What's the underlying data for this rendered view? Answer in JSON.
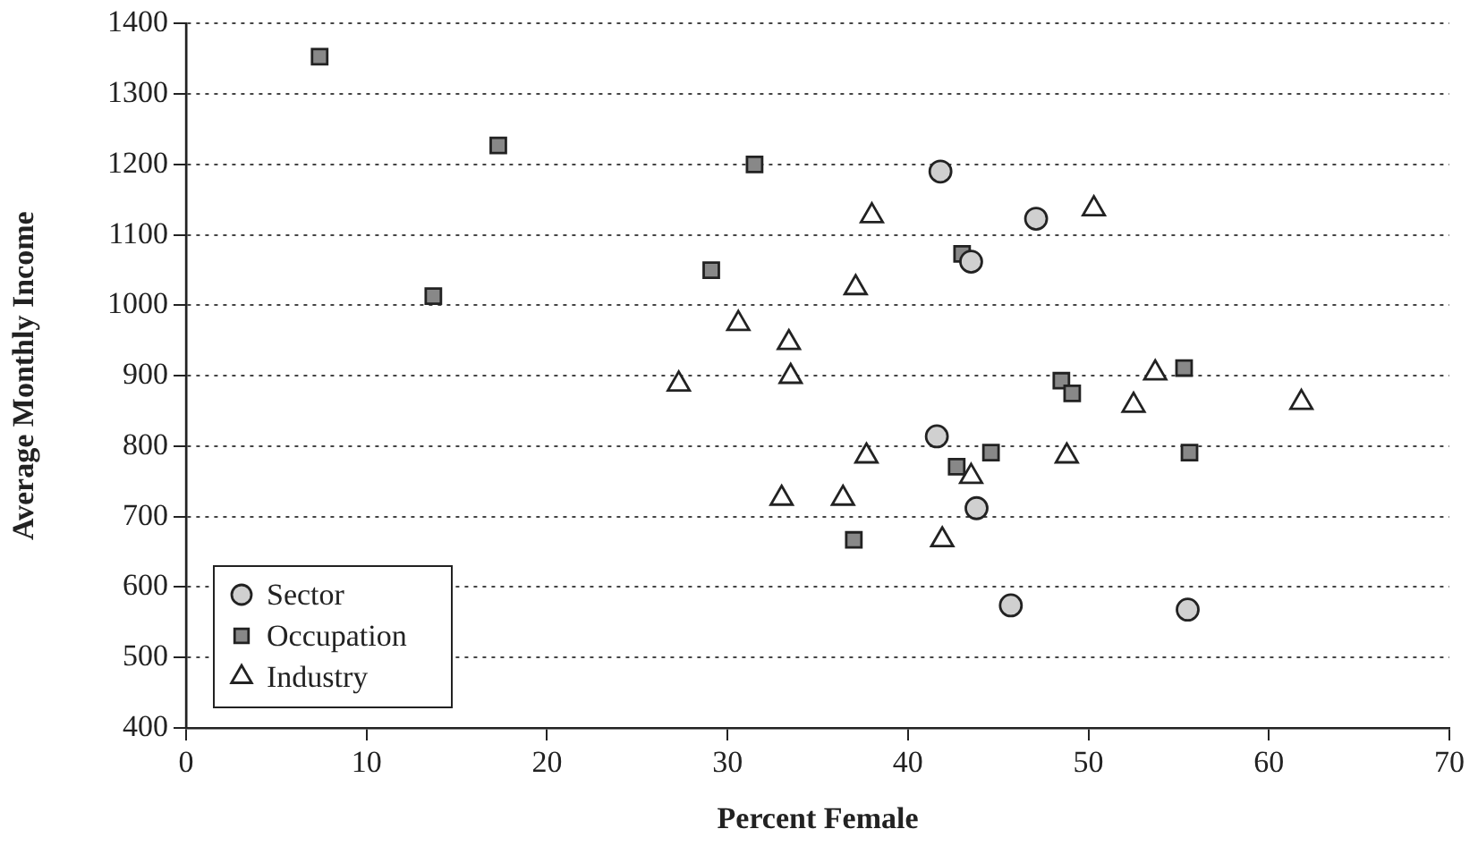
{
  "chart_data": {
    "type": "scatter",
    "xlabel": "Percent Female",
    "ylabel": "Average Monthly Income",
    "xlim": [
      0,
      70
    ],
    "xticks": [
      0,
      10,
      20,
      30,
      40,
      50,
      60,
      70
    ],
    "ylim": [
      400,
      1400
    ],
    "yticks": [
      400,
      500,
      600,
      700,
      800,
      900,
      1000,
      1100,
      1200,
      1300,
      1400
    ],
    "grid": "y",
    "legend": "bottom left",
    "series": [
      {
        "name": "Sector",
        "color": "#d0d0d0",
        "marker": "circle",
        "x": [
          41.8,
          47.1,
          43.5,
          41.6,
          43.8,
          45.7,
          55.5
        ],
        "values": [
          1190,
          1123,
          1062,
          814,
          712,
          574,
          568
        ]
      },
      {
        "name": "Occupation",
        "color": "#888888",
        "marker": "square",
        "x": [
          7.4,
          17.3,
          31.5,
          13.7,
          29.1,
          43.0,
          48.5,
          49.1,
          55.3,
          44.6,
          42.7,
          55.6,
          37.0
        ],
        "values": [
          1353,
          1227,
          1200,
          1013,
          1050,
          1073,
          893,
          875,
          911,
          791,
          771,
          791,
          667
        ]
      },
      {
        "name": "Industry",
        "color": "#ffffff",
        "marker": "triangle",
        "x": [
          38.0,
          50.3,
          37.1,
          30.6,
          33.4,
          33.5,
          27.3,
          53.7,
          52.5,
          61.8,
          37.7,
          48.8,
          43.5,
          33.0,
          36.4,
          41.9
        ],
        "values": [
          1127,
          1137,
          1025,
          974,
          947,
          899,
          888,
          904,
          858,
          862,
          786,
          786,
          757,
          726,
          726,
          667
        ]
      }
    ]
  }
}
